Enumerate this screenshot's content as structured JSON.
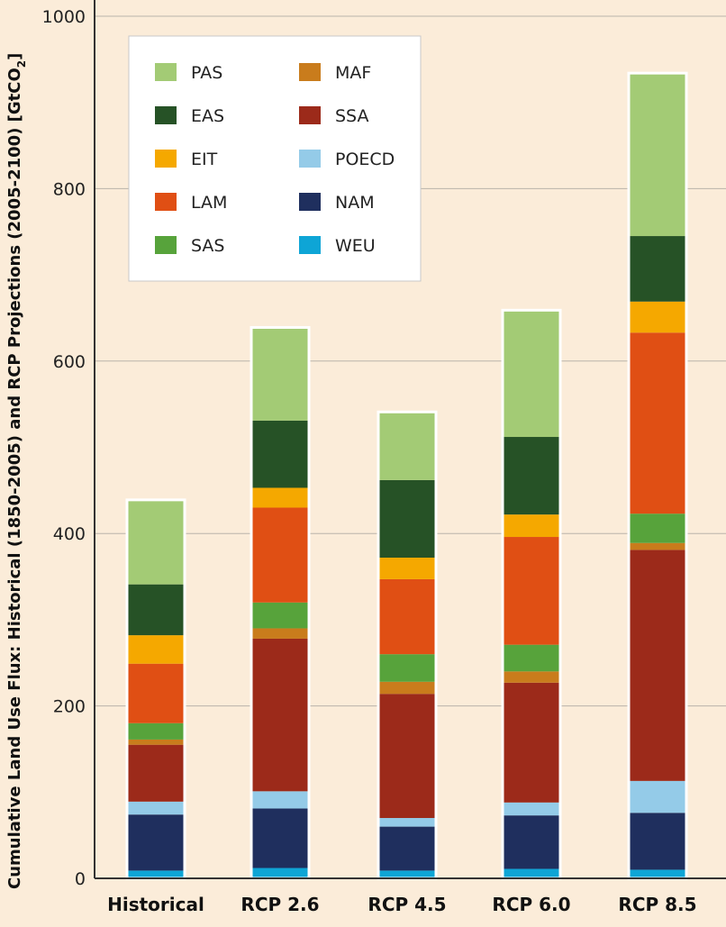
{
  "chart_data": {
    "type": "bar",
    "stacked": true,
    "ylabel_main": "Cumulative Land Use Flux: Historical (1850-2005) and RCP Projections (2005-2100) [GtCO",
    "ylabel_sub": "2",
    "ylabel_end": "]",
    "ylim": [
      0,
      1000
    ],
    "yticks": [
      "0",
      "200",
      "400",
      "600",
      "800",
      "1000"
    ],
    "grid": true,
    "legend_position": "top-left",
    "categories": [
      "Historical",
      "RCP 2.6",
      "RCP 4.5",
      "RCP 6.0",
      "RCP 8.5"
    ],
    "series": [
      {
        "name": "WEU",
        "color": "#0ea5d6",
        "values": [
          9,
          12,
          9,
          11,
          10
        ]
      },
      {
        "name": "NAM",
        "color": "#1f2f5e",
        "values": [
          65,
          69,
          51,
          62,
          66
        ]
      },
      {
        "name": "POECD",
        "color": "#94cbe8",
        "values": [
          15,
          20,
          10,
          15,
          37
        ]
      },
      {
        "name": "SSA",
        "color": "#9c2a1a",
        "values": [
          66,
          177,
          144,
          139,
          268
        ]
      },
      {
        "name": "MAF",
        "color": "#c97c1c",
        "values": [
          6,
          12,
          14,
          13,
          8
        ]
      },
      {
        "name": "SAS",
        "color": "#57a33b",
        "values": [
          19,
          30,
          32,
          31,
          34
        ]
      },
      {
        "name": "LAM",
        "color": "#e04f14",
        "values": [
          69,
          110,
          87,
          125,
          210
        ]
      },
      {
        "name": "EIT",
        "color": "#f5a800",
        "values": [
          33,
          23,
          25,
          26,
          36
        ]
      },
      {
        "name": "EAS",
        "color": "#265226",
        "values": [
          59,
          78,
          90,
          90,
          76
        ]
      },
      {
        "name": "PAS",
        "color": "#a3cb75",
        "values": [
          98,
          108,
          79,
          147,
          189
        ]
      }
    ],
    "legend_order": [
      "PAS",
      "EAS",
      "EIT",
      "LAM",
      "SAS",
      "MAF",
      "SSA",
      "POECD",
      "NAM",
      "WEU"
    ]
  }
}
